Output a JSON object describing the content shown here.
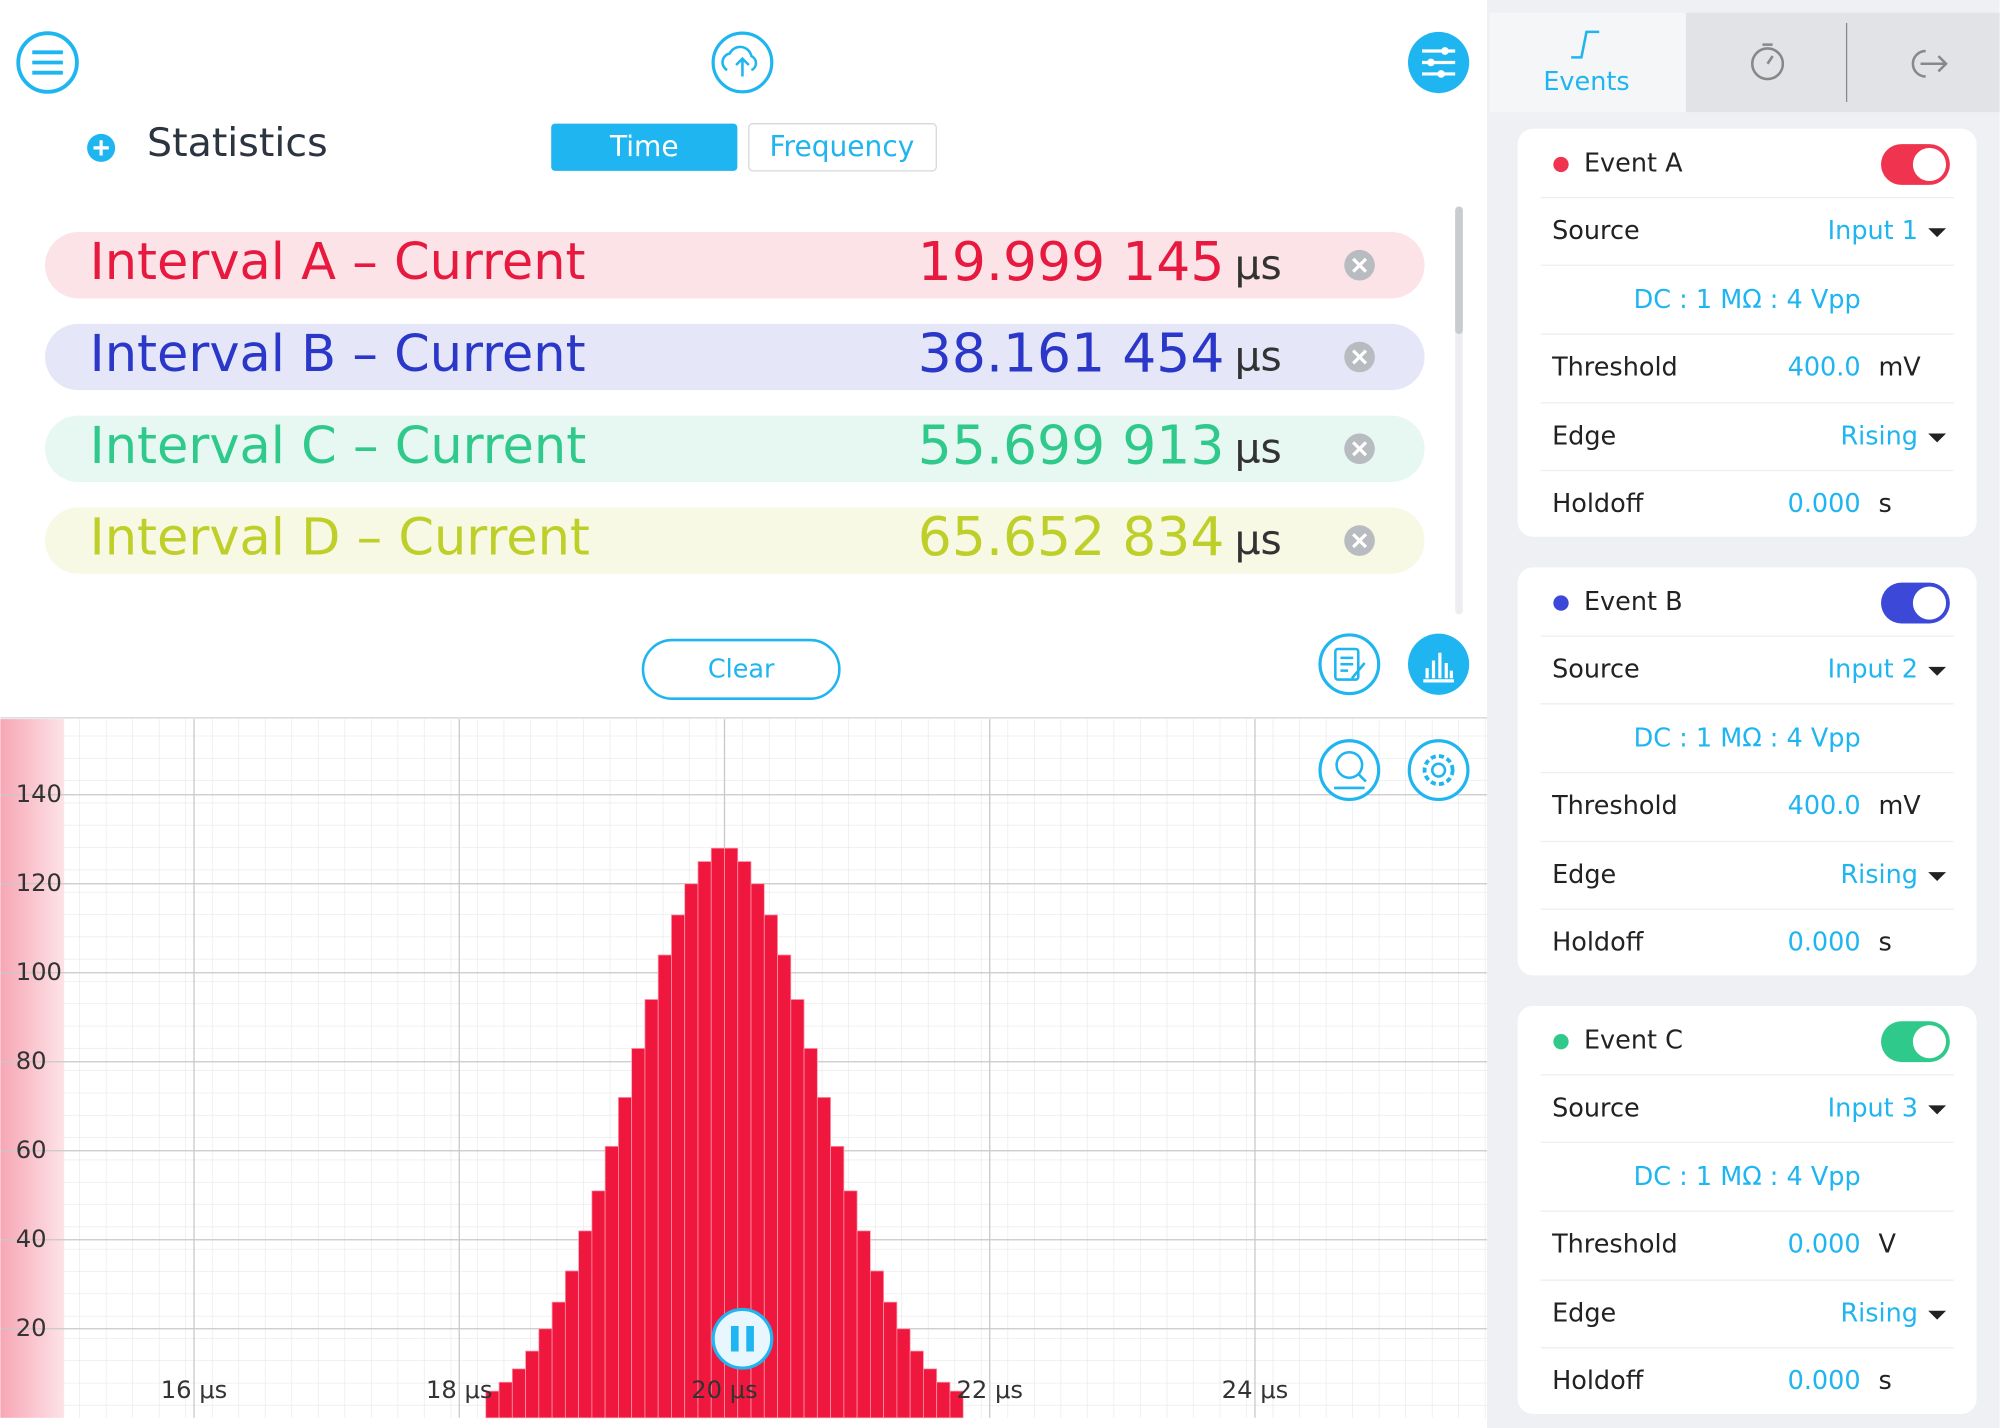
{
  "header": {
    "title": "Statistics",
    "tabs": [
      "Time",
      "Frequency"
    ]
  },
  "statistics": {
    "rows": [
      {
        "label": "Interval A – Current",
        "value": "19.999 145",
        "unit": "μs",
        "color": "#e8193f"
      },
      {
        "label": "Interval B – Current",
        "value": "38.161 454",
        "unit": "μs",
        "color": "#2a37c8"
      },
      {
        "label": "Interval C – Current",
        "value": "55.699 913",
        "unit": "μs",
        "color": "#2ec98b"
      },
      {
        "label": "Interval D – Current",
        "value": "65.652 834",
        "unit": "μs",
        "color": "#bfcf2a"
      }
    ]
  },
  "clear_button": "Clear",
  "side_tabs": {
    "events": "Events"
  },
  "events": [
    {
      "name": "Event A",
      "color": "#f0334f",
      "source_label": "Source",
      "source": "Input 1",
      "coupling": "DC : 1 MΩ : 4 Vpp",
      "threshold_label": "Threshold",
      "threshold": "400.0",
      "threshold_unit": "mV",
      "edge_label": "Edge",
      "edge": "Rising",
      "holdoff_label": "Holdoff",
      "holdoff": "0.000",
      "holdoff_unit": "s"
    },
    {
      "name": "Event B",
      "color": "#3b48d8",
      "source_label": "Source",
      "source": "Input 2",
      "coupling": "DC : 1 MΩ : 4 Vpp",
      "threshold_label": "Threshold",
      "threshold": "400.0",
      "threshold_unit": "mV",
      "edge_label": "Edge",
      "edge": "Rising",
      "holdoff_label": "Holdoff",
      "holdoff": "0.000",
      "holdoff_unit": "s"
    },
    {
      "name": "Event C",
      "color": "#2ec98b",
      "source_label": "Source",
      "source": "Input 3",
      "coupling": "DC : 1 MΩ : 4 Vpp",
      "threshold_label": "Threshold",
      "threshold": "0.000",
      "threshold_unit": "V",
      "edge_label": "Edge",
      "edge": "Rising",
      "holdoff_label": "Holdoff",
      "holdoff": "0.000",
      "holdoff_unit": "s"
    }
  ],
  "chart_data": {
    "type": "histogram",
    "color": "#f0173f",
    "bins": [
      18.2,
      18.3,
      18.4,
      18.5,
      18.6,
      18.7,
      18.8,
      18.9,
      19.0,
      19.1,
      19.2,
      19.3,
      19.4,
      19.5,
      19.6,
      19.7,
      19.8,
      19.9,
      20.0,
      20.1,
      20.2,
      20.3,
      20.4,
      20.5,
      20.6,
      20.7,
      20.8,
      20.9,
      21.0,
      21.1,
      21.2,
      21.3,
      21.4,
      21.5,
      21.6,
      21.7,
      21.8
    ],
    "counts": [
      6,
      8,
      11,
      15,
      20,
      26,
      33,
      42,
      51,
      61,
      72,
      83,
      94,
      104,
      113,
      120,
      125,
      128,
      128,
      125,
      120,
      113,
      104,
      94,
      83,
      72,
      61,
      51,
      42,
      33,
      26,
      20,
      15,
      11,
      8,
      6
    ],
    "xlim": [
      14.54,
      25.75
    ],
    "ylim": [
      0,
      157
    ],
    "xticks": [
      {
        "value": 16,
        "label": "16 μs"
      },
      {
        "value": 18,
        "label": "18 μs"
      },
      {
        "value": 20,
        "label": "20 μs"
      },
      {
        "value": 22,
        "label": "22 μs"
      },
      {
        "value": 24,
        "label": "24 μs"
      }
    ],
    "yticks": [
      20,
      40,
      60,
      80,
      100,
      120,
      140
    ],
    "grid": true
  }
}
